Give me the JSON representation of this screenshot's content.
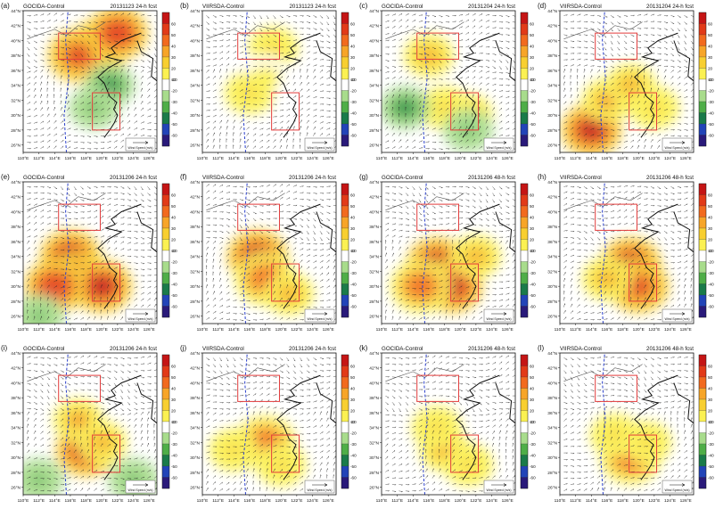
{
  "figure": {
    "wind_legend_title": "Wind Speed (m/s)",
    "lat_ticks": [
      "26°N",
      "28°N",
      "30°N",
      "32°N",
      "34°N",
      "36°N",
      "38°N",
      "40°N",
      "42°N",
      "44°N"
    ],
    "lon_ticks": [
      "110°E",
      "112°E",
      "114°E",
      "116°E",
      "118°E",
      "120°E",
      "122°E",
      "124°E",
      "126°E"
    ],
    "colorbar_ticks": [
      "60",
      "50",
      "40",
      "30",
      "20",
      "10",
      "-10",
      "-20",
      "-30",
      "-40",
      "-50",
      "-60"
    ],
    "colors": {
      "box": "#e23b3b",
      "dashed_line": "#2a3fc9",
      "coast": "#111111",
      "vectors": "#222222",
      "colorbar": [
        "#c51515",
        "#e23a18",
        "#f26a1e",
        "#f7a528",
        "#f8cf30",
        "#fbf152",
        "#ffffff",
        "#a8dc8c",
        "#4fae48",
        "#1a7b4a",
        "#2244b8",
        "#2a1a7a"
      ]
    }
  },
  "chart_data": [
    {
      "panel": "(a)",
      "label": "(a)",
      "experiment": "GOCIDA-Control",
      "date": "20131123",
      "forecast": "24-h fcst",
      "type": "heatmap",
      "xlim": [
        110,
        127
      ],
      "ylim": [
        25,
        44
      ],
      "zlim": [
        -60,
        60
      ],
      "blobs": [
        {
          "lon": 120,
          "lat": 39.5,
          "value": 60
        },
        {
          "lon": 117,
          "lat": 38,
          "value": 45
        },
        {
          "lon": 122,
          "lat": 41,
          "value": 50
        },
        {
          "lon": 121,
          "lat": 34,
          "value": -25
        },
        {
          "lon": 119,
          "lat": 31,
          "value": -20
        }
      ]
    },
    {
      "panel": "(b)",
      "label": "(b)",
      "experiment": "VIIRSDA-Control",
      "date": "20131123",
      "forecast": "24-h fcst",
      "type": "heatmap",
      "xlim": [
        110,
        127
      ],
      "ylim": [
        25,
        44
      ],
      "zlim": [
        -60,
        60
      ],
      "blobs": [
        {
          "lon": 119,
          "lat": 39,
          "value": 20
        },
        {
          "lon": 118,
          "lat": 35,
          "value": 12
        },
        {
          "lon": 116,
          "lat": 33,
          "value": 15
        }
      ]
    },
    {
      "panel": "(c)",
      "label": "(c)",
      "experiment": "GOCIDA-Control",
      "date": "20131204",
      "forecast": "24-h fcst",
      "type": "heatmap",
      "xlim": [
        110,
        127
      ],
      "ylim": [
        25,
        44
      ],
      "zlim": [
        -60,
        60
      ],
      "blobs": [
        {
          "lon": 116,
          "lat": 38,
          "value": 25
        },
        {
          "lon": 121,
          "lat": 30,
          "value": 30
        },
        {
          "lon": 118,
          "lat": 31,
          "value": 20
        },
        {
          "lon": 113,
          "lat": 31,
          "value": -25
        },
        {
          "lon": 121,
          "lat": 28,
          "value": -20
        }
      ]
    },
    {
      "panel": "(d)",
      "label": "(d)",
      "experiment": "VIIRSDA-Control",
      "date": "20131204",
      "forecast": "24-h fcst",
      "type": "heatmap",
      "xlim": [
        110,
        127
      ],
      "ylim": [
        25,
        44
      ],
      "zlim": [
        -60,
        60
      ],
      "blobs": [
        {
          "lon": 114,
          "lat": 28,
          "value": 60
        },
        {
          "lon": 116,
          "lat": 32,
          "value": 35
        },
        {
          "lon": 119,
          "lat": 34,
          "value": 30
        },
        {
          "lon": 122,
          "lat": 31,
          "value": 20
        }
      ]
    },
    {
      "panel": "(e)",
      "label": "(e)",
      "experiment": "GOCIDA-Control",
      "date": "20131206",
      "forecast": "24-h fcst",
      "type": "heatmap",
      "xlim": [
        110,
        127
      ],
      "ylim": [
        25,
        44
      ],
      "zlim": [
        -60,
        60
      ],
      "blobs": [
        {
          "lon": 116,
          "lat": 34,
          "value": 60
        },
        {
          "lon": 117,
          "lat": 31,
          "value": 60
        },
        {
          "lon": 120,
          "lat": 30,
          "value": 55
        },
        {
          "lon": 114,
          "lat": 30,
          "value": 50
        },
        {
          "lon": 112,
          "lat": 26,
          "value": -20
        }
      ]
    },
    {
      "panel": "(f)",
      "label": "(f)",
      "experiment": "VIIRSDA-Control",
      "date": "20131206",
      "forecast": "24-h fcst",
      "type": "heatmap",
      "xlim": [
        110,
        127
      ],
      "ylim": [
        25,
        44
      ],
      "zlim": [
        -60,
        60
      ],
      "blobs": [
        {
          "lon": 117,
          "lat": 34,
          "value": 60
        },
        {
          "lon": 118,
          "lat": 31,
          "value": 40
        },
        {
          "lon": 121,
          "lat": 29,
          "value": 30
        }
      ]
    },
    {
      "panel": "(g)",
      "label": "(g)",
      "experiment": "GOCIDA-Control",
      "date": "20131206",
      "forecast": "48-h fcst",
      "type": "heatmap",
      "xlim": [
        110,
        127
      ],
      "ylim": [
        25,
        44
      ],
      "zlim": [
        -60,
        60
      ],
      "blobs": [
        {
          "lon": 117,
          "lat": 33,
          "value": 60
        },
        {
          "lon": 119,
          "lat": 30,
          "value": 55
        },
        {
          "lon": 115,
          "lat": 30,
          "value": 40
        },
        {
          "lon": 122,
          "lat": 34,
          "value": 25
        }
      ]
    },
    {
      "panel": "(h)",
      "label": "(h)",
      "experiment": "VIIRSDA-Control",
      "date": "20131206",
      "forecast": "48-h fcst",
      "type": "heatmap",
      "xlim": [
        110,
        127
      ],
      "ylim": [
        25,
        44
      ],
      "zlim": [
        -60,
        60
      ],
      "blobs": [
        {
          "lon": 119,
          "lat": 33,
          "value": 60
        },
        {
          "lon": 120,
          "lat": 30,
          "value": 45
        },
        {
          "lon": 116,
          "lat": 31,
          "value": 30
        }
      ]
    },
    {
      "panel": "(i)",
      "label": "(i)",
      "experiment": "GOCIDA-Control",
      "date": "20131206",
      "forecast": "24-h fcst",
      "type": "heatmap",
      "xlim": [
        110,
        127
      ],
      "ylim": [
        25,
        44
      ],
      "zlim": [
        -60,
        60
      ],
      "blobs": [
        {
          "lon": 118,
          "lat": 31,
          "value": 60
        },
        {
          "lon": 117,
          "lat": 35,
          "value": 35
        },
        {
          "lon": 120,
          "lat": 32,
          "value": 30
        },
        {
          "lon": 124,
          "lat": 27,
          "value": -20
        },
        {
          "lon": 112,
          "lat": 27,
          "value": -15
        }
      ]
    },
    {
      "panel": "(j)",
      "label": "(j)",
      "experiment": "VIIRSDA-Control",
      "date": "20131206",
      "forecast": "24-h fcst",
      "type": "heatmap",
      "xlim": [
        110,
        127
      ],
      "ylim": [
        25,
        44
      ],
      "zlim": [
        -60,
        60
      ],
      "blobs": [
        {
          "lon": 118,
          "lat": 32,
          "value": 40
        },
        {
          "lon": 120,
          "lat": 29,
          "value": 20
        },
        {
          "lon": 114,
          "lat": 31,
          "value": 15
        }
      ]
    },
    {
      "panel": "(k)",
      "label": "(k)",
      "experiment": "GOCIDA-Control",
      "date": "20131206",
      "forecast": "48-h fcst",
      "type": "heatmap",
      "xlim": [
        110,
        127
      ],
      "ylim": [
        25,
        44
      ],
      "zlim": [
        -60,
        60
      ],
      "blobs": [
        {
          "lon": 118,
          "lat": 31,
          "value": 35
        },
        {
          "lon": 121,
          "lat": 29,
          "value": 20
        },
        {
          "lon": 117,
          "lat": 34,
          "value": 15
        }
      ]
    },
    {
      "panel": "(l)",
      "label": "(l)",
      "experiment": "VIIRSDA-Control",
      "date": "20131206",
      "forecast": "48-h fcst",
      "type": "heatmap",
      "xlim": [
        110,
        127
      ],
      "ylim": [
        25,
        44
      ],
      "zlim": [
        -60,
        60
      ],
      "blobs": [
        {
          "lon": 119,
          "lat": 30,
          "value": 40
        },
        {
          "lon": 117,
          "lat": 33,
          "value": 20
        },
        {
          "lon": 121,
          "lat": 32,
          "value": 15
        }
      ]
    }
  ]
}
